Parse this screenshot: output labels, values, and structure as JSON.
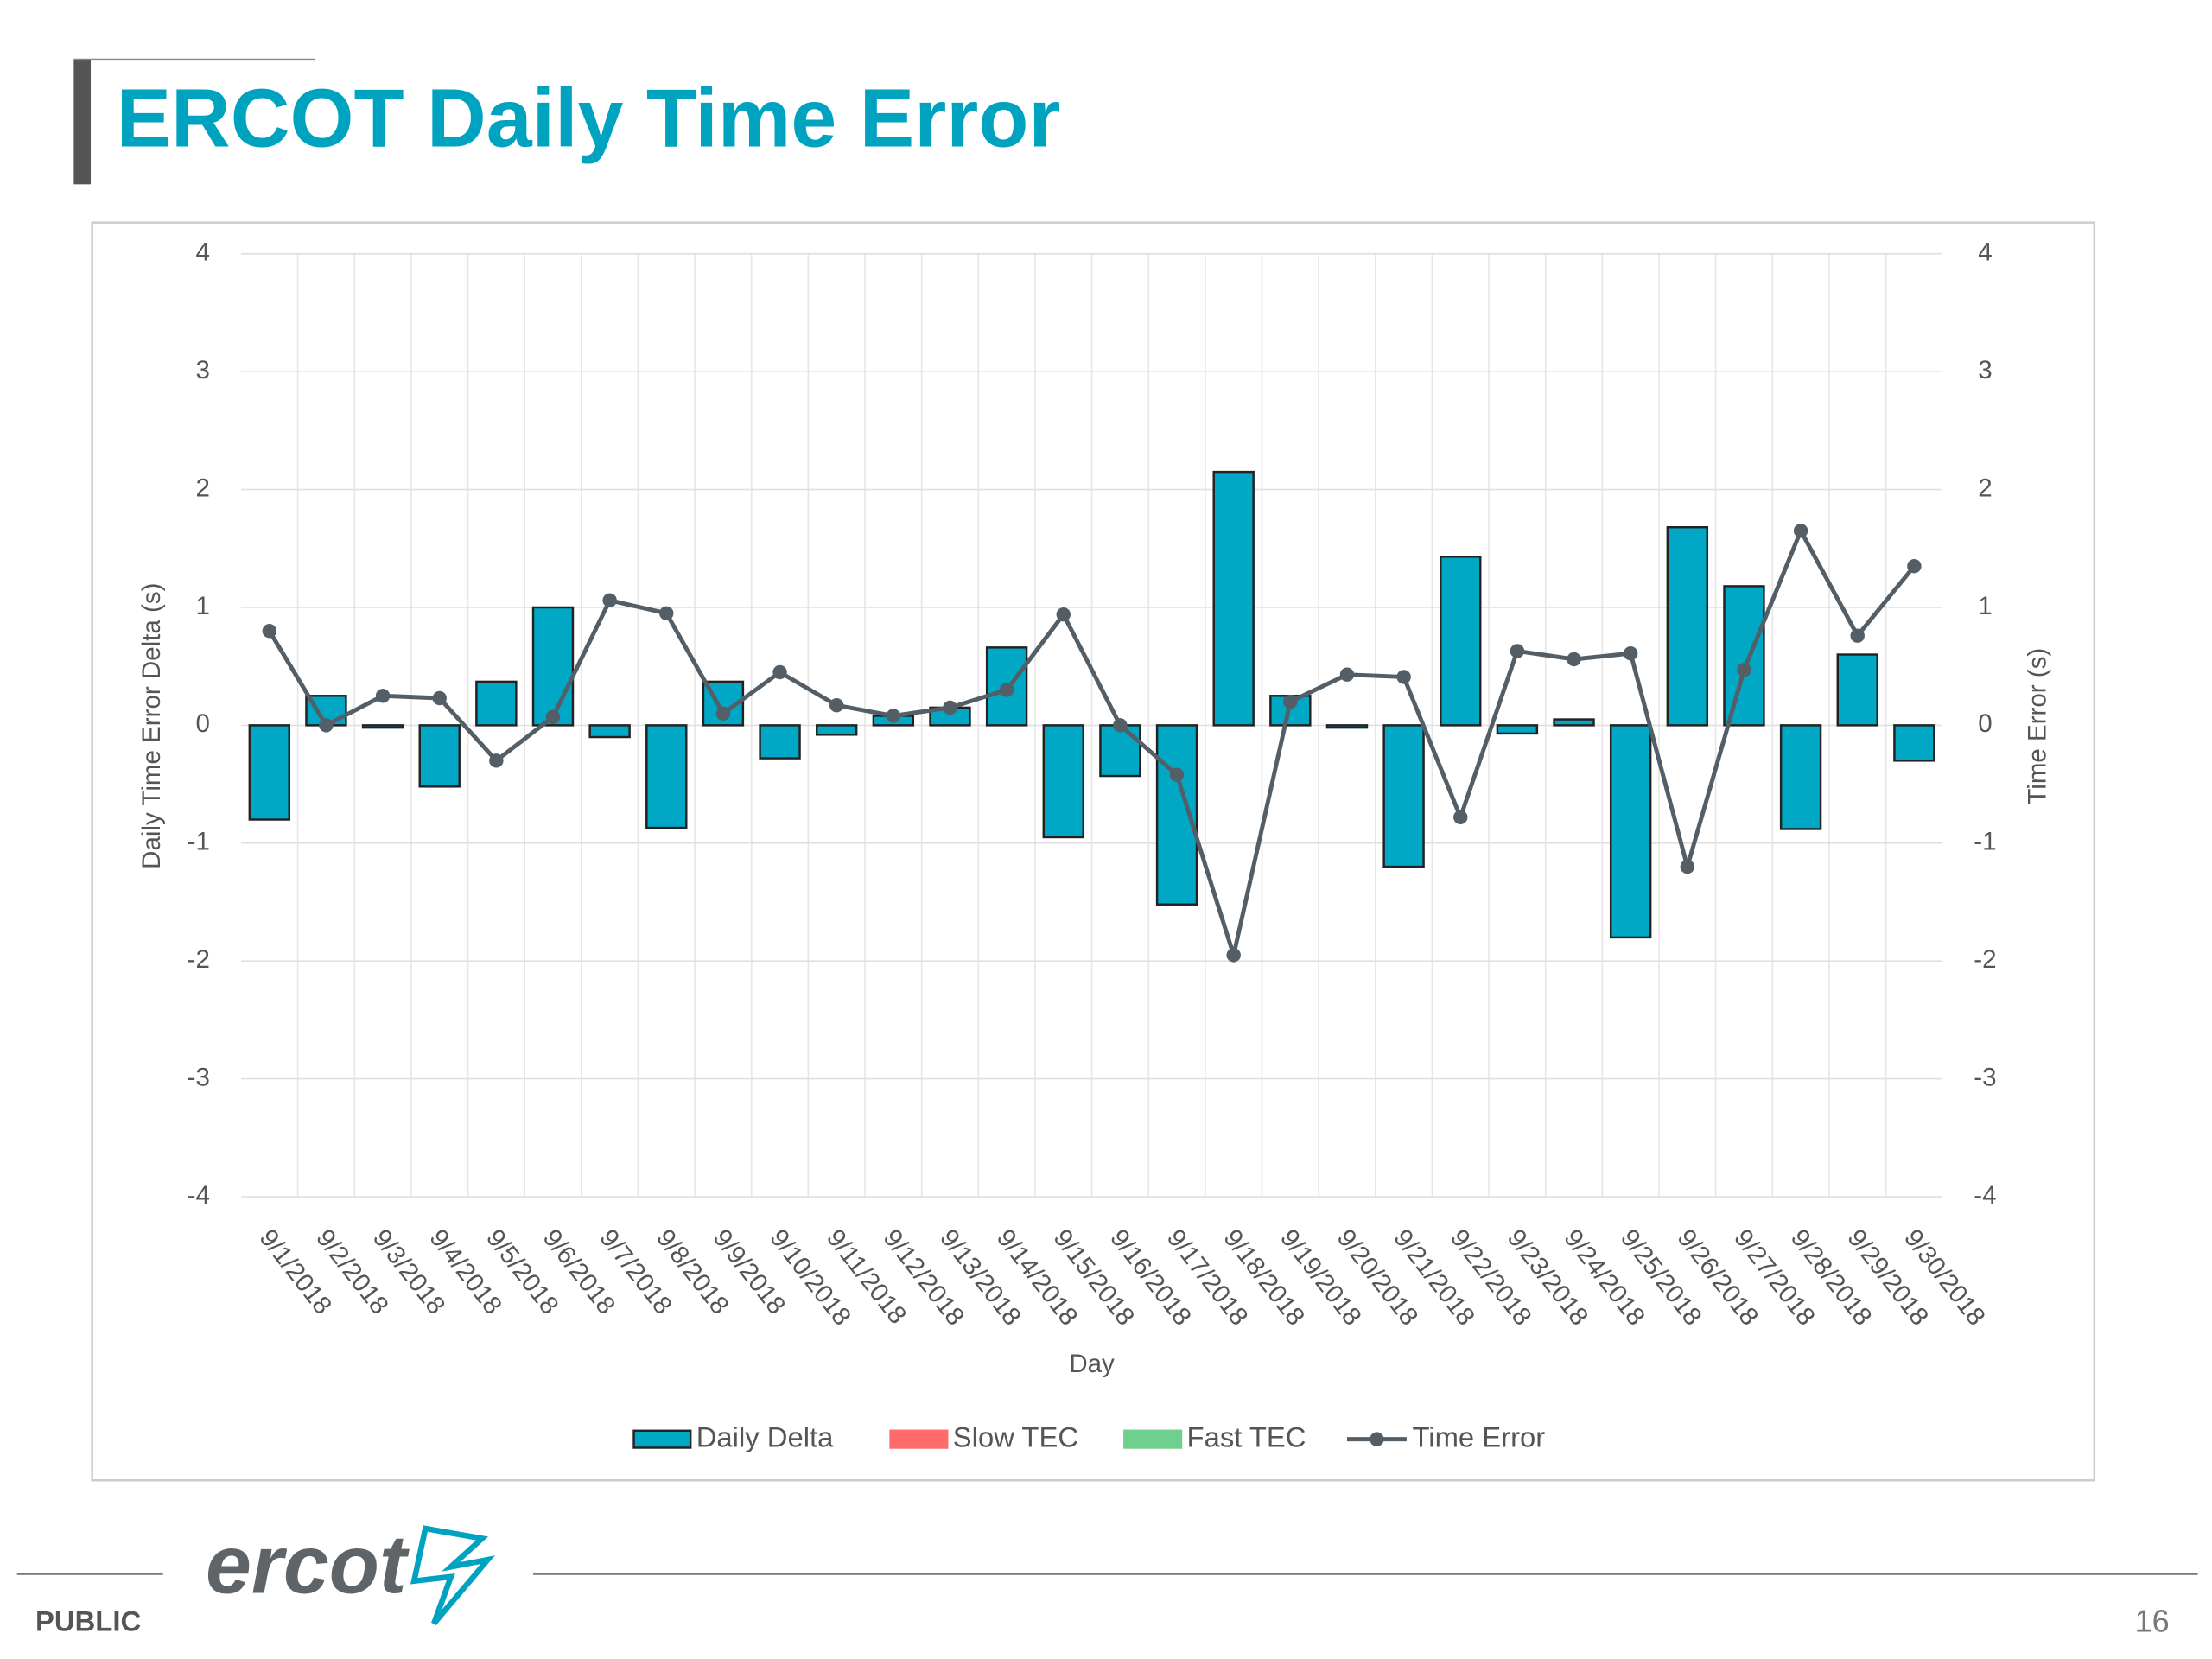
{
  "title": "ERCOT Daily Time Error",
  "chart_data": {
    "type": "bar",
    "categories": [
      "9/1/2018",
      "9/2/2018",
      "9/3/2018",
      "9/4/2018",
      "9/5/2018",
      "9/6/2018",
      "9/7/2018",
      "9/8/2018",
      "9/9/2018",
      "9/10/2018",
      "9/11/2018",
      "9/12/2018",
      "9/13/2018",
      "9/14/2018",
      "9/15/2018",
      "9/16/2018",
      "9/17/2018",
      "9/18/2018",
      "9/19/2018",
      "9/20/2018",
      "9/21/2018",
      "9/22/2018",
      "9/23/2018",
      "9/24/2018",
      "9/25/2018",
      "9/26/2018",
      "9/27/2018",
      "9/28/2018",
      "9/29/2018",
      "9/30/2018"
    ],
    "series": [
      {
        "name": "Daily Delta",
        "type": "bar",
        "color": "#00a8c6",
        "values": [
          -0.8,
          0.25,
          -0.02,
          -0.52,
          0.37,
          1.0,
          -0.1,
          -0.87,
          0.37,
          -0.28,
          -0.08,
          0.08,
          0.15,
          0.66,
          -0.95,
          -0.43,
          -1.52,
          2.15,
          0.25,
          -0.02,
          -1.2,
          1.43,
          -0.07,
          0.05,
          -1.8,
          1.68,
          1.18,
          -0.88,
          0.6,
          -0.3
        ]
      },
      {
        "name": "Slow TEC",
        "type": "bar",
        "color": "#ff6b6b",
        "values": [
          null,
          null,
          null,
          null,
          null,
          null,
          null,
          null,
          null,
          null,
          null,
          null,
          null,
          null,
          null,
          null,
          null,
          null,
          null,
          null,
          null,
          null,
          null,
          null,
          null,
          null,
          null,
          null,
          null,
          null
        ]
      },
      {
        "name": "Fast TEC",
        "type": "bar",
        "color": "#6fcf8f",
        "values": [
          null,
          null,
          null,
          null,
          null,
          null,
          null,
          null,
          null,
          null,
          null,
          null,
          null,
          null,
          null,
          null,
          null,
          null,
          null,
          null,
          null,
          null,
          null,
          null,
          null,
          null,
          null,
          null,
          null,
          null
        ]
      },
      {
        "name": "Time Error",
        "type": "line",
        "axis": "y2",
        "color": "#545e66",
        "values": [
          0.8,
          0.0,
          0.25,
          0.23,
          -0.3,
          0.07,
          1.06,
          0.95,
          0.1,
          0.45,
          0.17,
          0.08,
          0.15,
          0.3,
          0.94,
          0.0,
          -0.42,
          -1.95,
          0.2,
          0.43,
          0.41,
          -0.78,
          0.63,
          0.56,
          0.61,
          -1.2,
          0.47,
          1.65,
          0.76,
          1.35
        ]
      }
    ],
    "x_label": "Day",
    "y_label": "Daily Time Error Delta (s)",
    "y2_label": "Time Error (s)",
    "ylim": [
      -4,
      4
    ],
    "yticks": [
      -4,
      -3,
      -2,
      -1,
      0,
      1,
      2,
      3,
      4
    ],
    "y2lim": [
      -4,
      4
    ],
    "y2ticks": [
      -4,
      -3,
      -2,
      -1,
      0,
      1,
      2,
      3,
      4
    ],
    "grid": true,
    "legend": "bottom"
  },
  "footer": {
    "logo": "ercot",
    "classification": "PUBLIC",
    "page": 16
  }
}
